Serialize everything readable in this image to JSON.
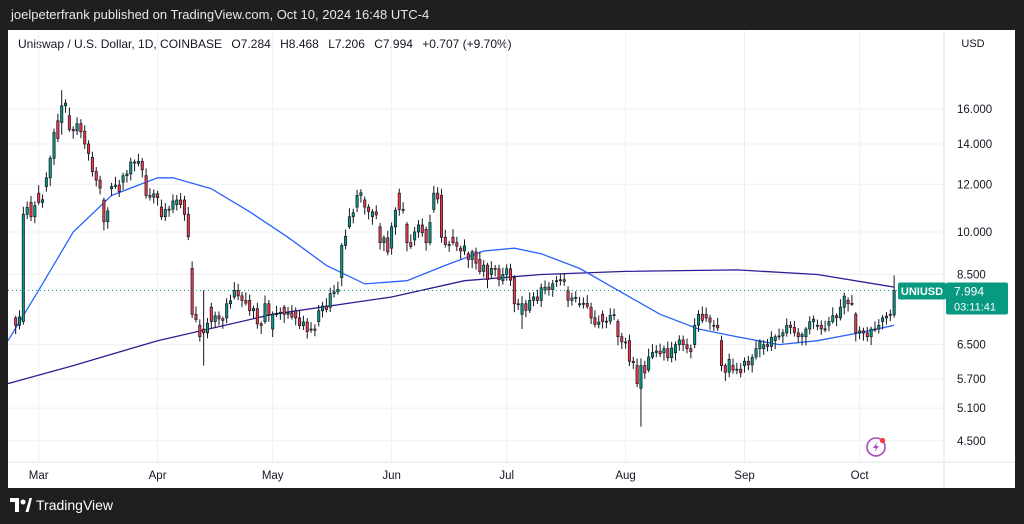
{
  "header": {
    "publish_line": "joelpeterfrank published on TradingView.com, Oct 10, 2024 16:48 UTC-4"
  },
  "legend": {
    "symbol_desc": "Uniswap / U.S. Dollar, 1D, COINBASE",
    "open": "O7.284",
    "high": "H8.468",
    "low": "L7.206",
    "close": "C7.994",
    "change": "+0.707 (+9.70%)"
  },
  "currency_label": "USD",
  "price_tag": {
    "symbol": "UNIUSD",
    "price": "7.994",
    "countdown": "03:11:41",
    "color": "#089981"
  },
  "footer": {
    "brand": "TradingView"
  },
  "chart_data": {
    "type": "candlestick",
    "y_scale": "log",
    "ylim": [
      4.15,
      19.3
    ],
    "y_ticks": [
      "16.000",
      "14.000",
      "12.000",
      "10.000",
      "8.500",
      "6.500",
      "5.700",
      "5.100",
      "4.500"
    ],
    "x_ticks": [
      "Mar",
      "Apr",
      "May",
      "Jun",
      "Jul",
      "Aug",
      "Sep",
      "Oct"
    ],
    "colors": {
      "up": "#089981",
      "down": "#f23645",
      "ma_short": "#2962ff",
      "ma_long": "#311b92",
      "grid": "#eef0f3"
    },
    "close_marker": 7.994,
    "anchors": [
      [
        "2024-02-24",
        7.2,
        7.0
      ],
      [
        "2024-02-26",
        7.1,
        10.7
      ],
      [
        "2024-02-28",
        11.2,
        10.6
      ],
      [
        "2024-03-01",
        11.6,
        11.2
      ],
      [
        "2024-03-03",
        11.9,
        12.3
      ],
      [
        "2024-03-06",
        15.3,
        14.3
      ],
      [
        "2024-03-07",
        15.2,
        16.2
      ],
      [
        "2024-03-09",
        15.6,
        14.8
      ],
      [
        "2024-03-13",
        14.7,
        14.0
      ],
      [
        "2024-03-15",
        13.3,
        12.6
      ],
      [
        "2024-03-18",
        11.3,
        10.4
      ],
      [
        "2024-03-20",
        11.8,
        11.9
      ],
      [
        "2024-03-23",
        12.1,
        12.4
      ],
      [
        "2024-03-27",
        13.0,
        13.1
      ],
      [
        "2024-03-29",
        12.4,
        11.5
      ],
      [
        "2024-04-02",
        11.0,
        10.6
      ],
      [
        "2024-04-06",
        11.1,
        11.3
      ],
      [
        "2024-04-08",
        11.3,
        10.7
      ],
      [
        "2024-04-10",
        8.7,
        7.3
      ],
      [
        "2024-04-12",
        7.0,
        6.7
      ],
      [
        "2024-04-13",
        6.9,
        6.8
      ],
      [
        "2024-04-15",
        7.5,
        7.1
      ],
      [
        "2024-04-19",
        7.2,
        7.6
      ],
      [
        "2024-04-21",
        7.8,
        8.0
      ],
      [
        "2024-04-25",
        7.7,
        7.4
      ],
      [
        "2024-04-29",
        7.1,
        7.6
      ],
      [
        "2024-05-01",
        6.9,
        7.3
      ],
      [
        "2024-05-04",
        7.5,
        7.3
      ],
      [
        "2024-05-07",
        7.4,
        7.2
      ],
      [
        "2024-05-11",
        6.9,
        6.9
      ],
      [
        "2024-05-13",
        7.1,
        7.4
      ],
      [
        "2024-05-16",
        7.5,
        7.9
      ],
      [
        "2024-05-19",
        8.4,
        9.5
      ],
      [
        "2024-05-21",
        10.2,
        10.6
      ],
      [
        "2024-05-23",
        11.0,
        11.5
      ],
      [
        "2024-05-25",
        11.3,
        11.0
      ],
      [
        "2024-05-27",
        10.6,
        10.8
      ],
      [
        "2024-05-29",
        10.2,
        9.6
      ],
      [
        "2024-06-01",
        9.4,
        10.2
      ],
      [
        "2024-06-03",
        11.6,
        10.9
      ],
      [
        "2024-06-05",
        10.3,
        9.6
      ],
      [
        "2024-06-07",
        9.7,
        10.0
      ],
      [
        "2024-06-10",
        10.1,
        9.6
      ],
      [
        "2024-06-12",
        10.9,
        11.6
      ],
      [
        "2024-06-14",
        11.5,
        9.8
      ],
      [
        "2024-06-17",
        9.8,
        9.6
      ],
      [
        "2024-06-19",
        9.4,
        9.3
      ],
      [
        "2024-06-21",
        9.2,
        9.0
      ],
      [
        "2024-06-24",
        9.0,
        8.6
      ],
      [
        "2024-06-27",
        8.5,
        8.7
      ],
      [
        "2024-06-30",
        8.3,
        8.5
      ],
      [
        "2024-07-03",
        8.4,
        7.6
      ],
      [
        "2024-07-05",
        7.3,
        7.6
      ],
      [
        "2024-07-08",
        7.7,
        7.8
      ],
      [
        "2024-07-11",
        8.0,
        8.1
      ],
      [
        "2024-07-14",
        8.3,
        8.3
      ],
      [
        "2024-07-17",
        8.0,
        7.7
      ],
      [
        "2024-07-20",
        7.6,
        7.6
      ],
      [
        "2024-07-23",
        7.5,
        7.2
      ],
      [
        "2024-07-26",
        7.3,
        7.1
      ],
      [
        "2024-07-30",
        7.1,
        6.7
      ],
      [
        "2024-08-02",
        6.6,
        6.1
      ],
      [
        "2024-08-04",
        6.0,
        5.6
      ],
      [
        "2024-08-05",
        5.5,
        6.0
      ],
      [
        "2024-08-07",
        5.9,
        6.2
      ],
      [
        "2024-08-11",
        6.3,
        6.4
      ],
      [
        "2024-08-14",
        6.3,
        6.5
      ],
      [
        "2024-08-17",
        6.5,
        6.4
      ],
      [
        "2024-08-19",
        6.5,
        7.0
      ],
      [
        "2024-08-22",
        7.3,
        7.2
      ],
      [
        "2024-08-24",
        7.0,
        7.0
      ],
      [
        "2024-08-26",
        6.6,
        6.0
      ],
      [
        "2024-08-29",
        6.0,
        5.9
      ],
      [
        "2024-09-01",
        6.0,
        6.1
      ],
      [
        "2024-09-04",
        6.2,
        6.4
      ],
      [
        "2024-09-06",
        6.4,
        6.5
      ],
      [
        "2024-09-09",
        6.6,
        6.7
      ],
      [
        "2024-09-12",
        6.8,
        7.0
      ],
      [
        "2024-09-15",
        6.8,
        6.7
      ],
      [
        "2024-09-17",
        6.7,
        6.9
      ],
      [
        "2024-09-20",
        7.0,
        7.0
      ],
      [
        "2024-09-23",
        7.0,
        7.1
      ],
      [
        "2024-09-26",
        7.2,
        7.5
      ],
      [
        "2024-09-28",
        7.7,
        7.6
      ],
      [
        "2024-09-30",
        7.3,
        6.8
      ],
      [
        "2024-10-03",
        6.8,
        6.7
      ],
      [
        "2024-10-05",
        6.9,
        6.9
      ],
      [
        "2024-10-07",
        7.1,
        7.2
      ],
      [
        "2024-10-09",
        7.3,
        7.28
      ],
      [
        "2024-10-10",
        7.284,
        7.994
      ]
    ],
    "last_candle": {
      "date": "2024-10-10",
      "open": 7.284,
      "high": 8.468,
      "low": 7.206,
      "close": 7.994
    },
    "ma_short": [
      [
        "2024-02-22",
        6.6
      ],
      [
        "2024-03-01",
        8.0
      ],
      [
        "2024-03-10",
        10.0
      ],
      [
        "2024-03-20",
        11.5
      ],
      [
        "2024-04-01",
        12.3
      ],
      [
        "2024-04-05",
        12.3
      ],
      [
        "2024-04-15",
        11.8
      ],
      [
        "2024-04-25",
        10.8
      ],
      [
        "2024-05-05",
        9.8
      ],
      [
        "2024-05-15",
        8.8
      ],
      [
        "2024-05-25",
        8.2
      ],
      [
        "2024-06-05",
        8.3
      ],
      [
        "2024-06-15",
        8.8
      ],
      [
        "2024-06-25",
        9.3
      ],
      [
        "2024-07-03",
        9.4
      ],
      [
        "2024-07-10",
        9.2
      ],
      [
        "2024-07-20",
        8.7
      ],
      [
        "2024-07-30",
        8.0
      ],
      [
        "2024-08-10",
        7.3
      ],
      [
        "2024-08-20",
        6.9
      ],
      [
        "2024-08-30",
        6.7
      ],
      [
        "2024-09-10",
        6.5
      ],
      [
        "2024-09-20",
        6.6
      ],
      [
        "2024-10-01",
        6.8
      ],
      [
        "2024-10-10",
        7.0
      ]
    ],
    "ma_long": [
      [
        "2024-02-22",
        5.6
      ],
      [
        "2024-03-10",
        6.0
      ],
      [
        "2024-04-01",
        6.6
      ],
      [
        "2024-05-01",
        7.3
      ],
      [
        "2024-06-01",
        7.8
      ],
      [
        "2024-06-20",
        8.3
      ],
      [
        "2024-07-10",
        8.5
      ],
      [
        "2024-08-01",
        8.6
      ],
      [
        "2024-08-30",
        8.65
      ],
      [
        "2024-09-20",
        8.5
      ],
      [
        "2024-10-10",
        8.1
      ]
    ],
    "notable_wicks": [
      [
        "2024-03-07",
        17.2,
        14.5
      ],
      [
        "2024-04-13",
        8.0,
        6.0
      ],
      [
        "2024-07-05",
        7.7,
        6.9
      ],
      [
        "2024-08-05",
        6.1,
        4.75
      ],
      [
        "2024-06-14",
        11.8,
        9.6
      ]
    ]
  }
}
